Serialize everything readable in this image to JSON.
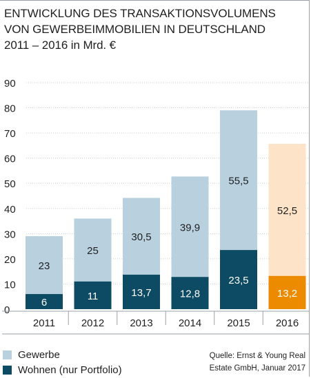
{
  "chart_data": {
    "type": "bar",
    "stacked": true,
    "title_lines": [
      "ENTWICKLUNG DES TRANSAKTIONSVOLUMENS",
      "VON GEWERBEIMMOBILIEN IN DEUTSCHLAND",
      "2011 – 2016 in Mrd. €"
    ],
    "categories": [
      "2011",
      "2012",
      "2013",
      "2014",
      "2015",
      "2016"
    ],
    "yticks": [
      0,
      10,
      20,
      30,
      40,
      50,
      60,
      70,
      80,
      90
    ],
    "ylim": [
      0,
      90
    ],
    "grid": true,
    "series": [
      {
        "name": "Wohnen (nur Portfolio)",
        "values": [
          6,
          11,
          13.7,
          12.8,
          23.5,
          13.2
        ],
        "labels": [
          "6",
          "11",
          "13,7",
          "12,8",
          "23,5",
          "13,2"
        ],
        "color": "#0d4a63",
        "highlight_color": "#ed8b00"
      },
      {
        "name": "Gewerbe",
        "values": [
          23,
          25,
          30.5,
          39.9,
          55.5,
          52.5
        ],
        "labels": [
          "23",
          "25",
          "30,5",
          "39,9",
          "55,5",
          "52,5"
        ],
        "color": "#b9d0df",
        "highlight_color": "#fde3c8"
      }
    ],
    "highlight_category": "2016",
    "legend_position": "bottom-left"
  },
  "legend": [
    {
      "label": "Gewerbe",
      "color": "#b9d0df"
    },
    {
      "label": "Wohnen (nur Portfolio)",
      "color": "#0d4a63"
    }
  ],
  "source": {
    "line1": "Quelle: Ernst & Young Real",
    "line2": "Estate GmbH, Januar 2017"
  }
}
